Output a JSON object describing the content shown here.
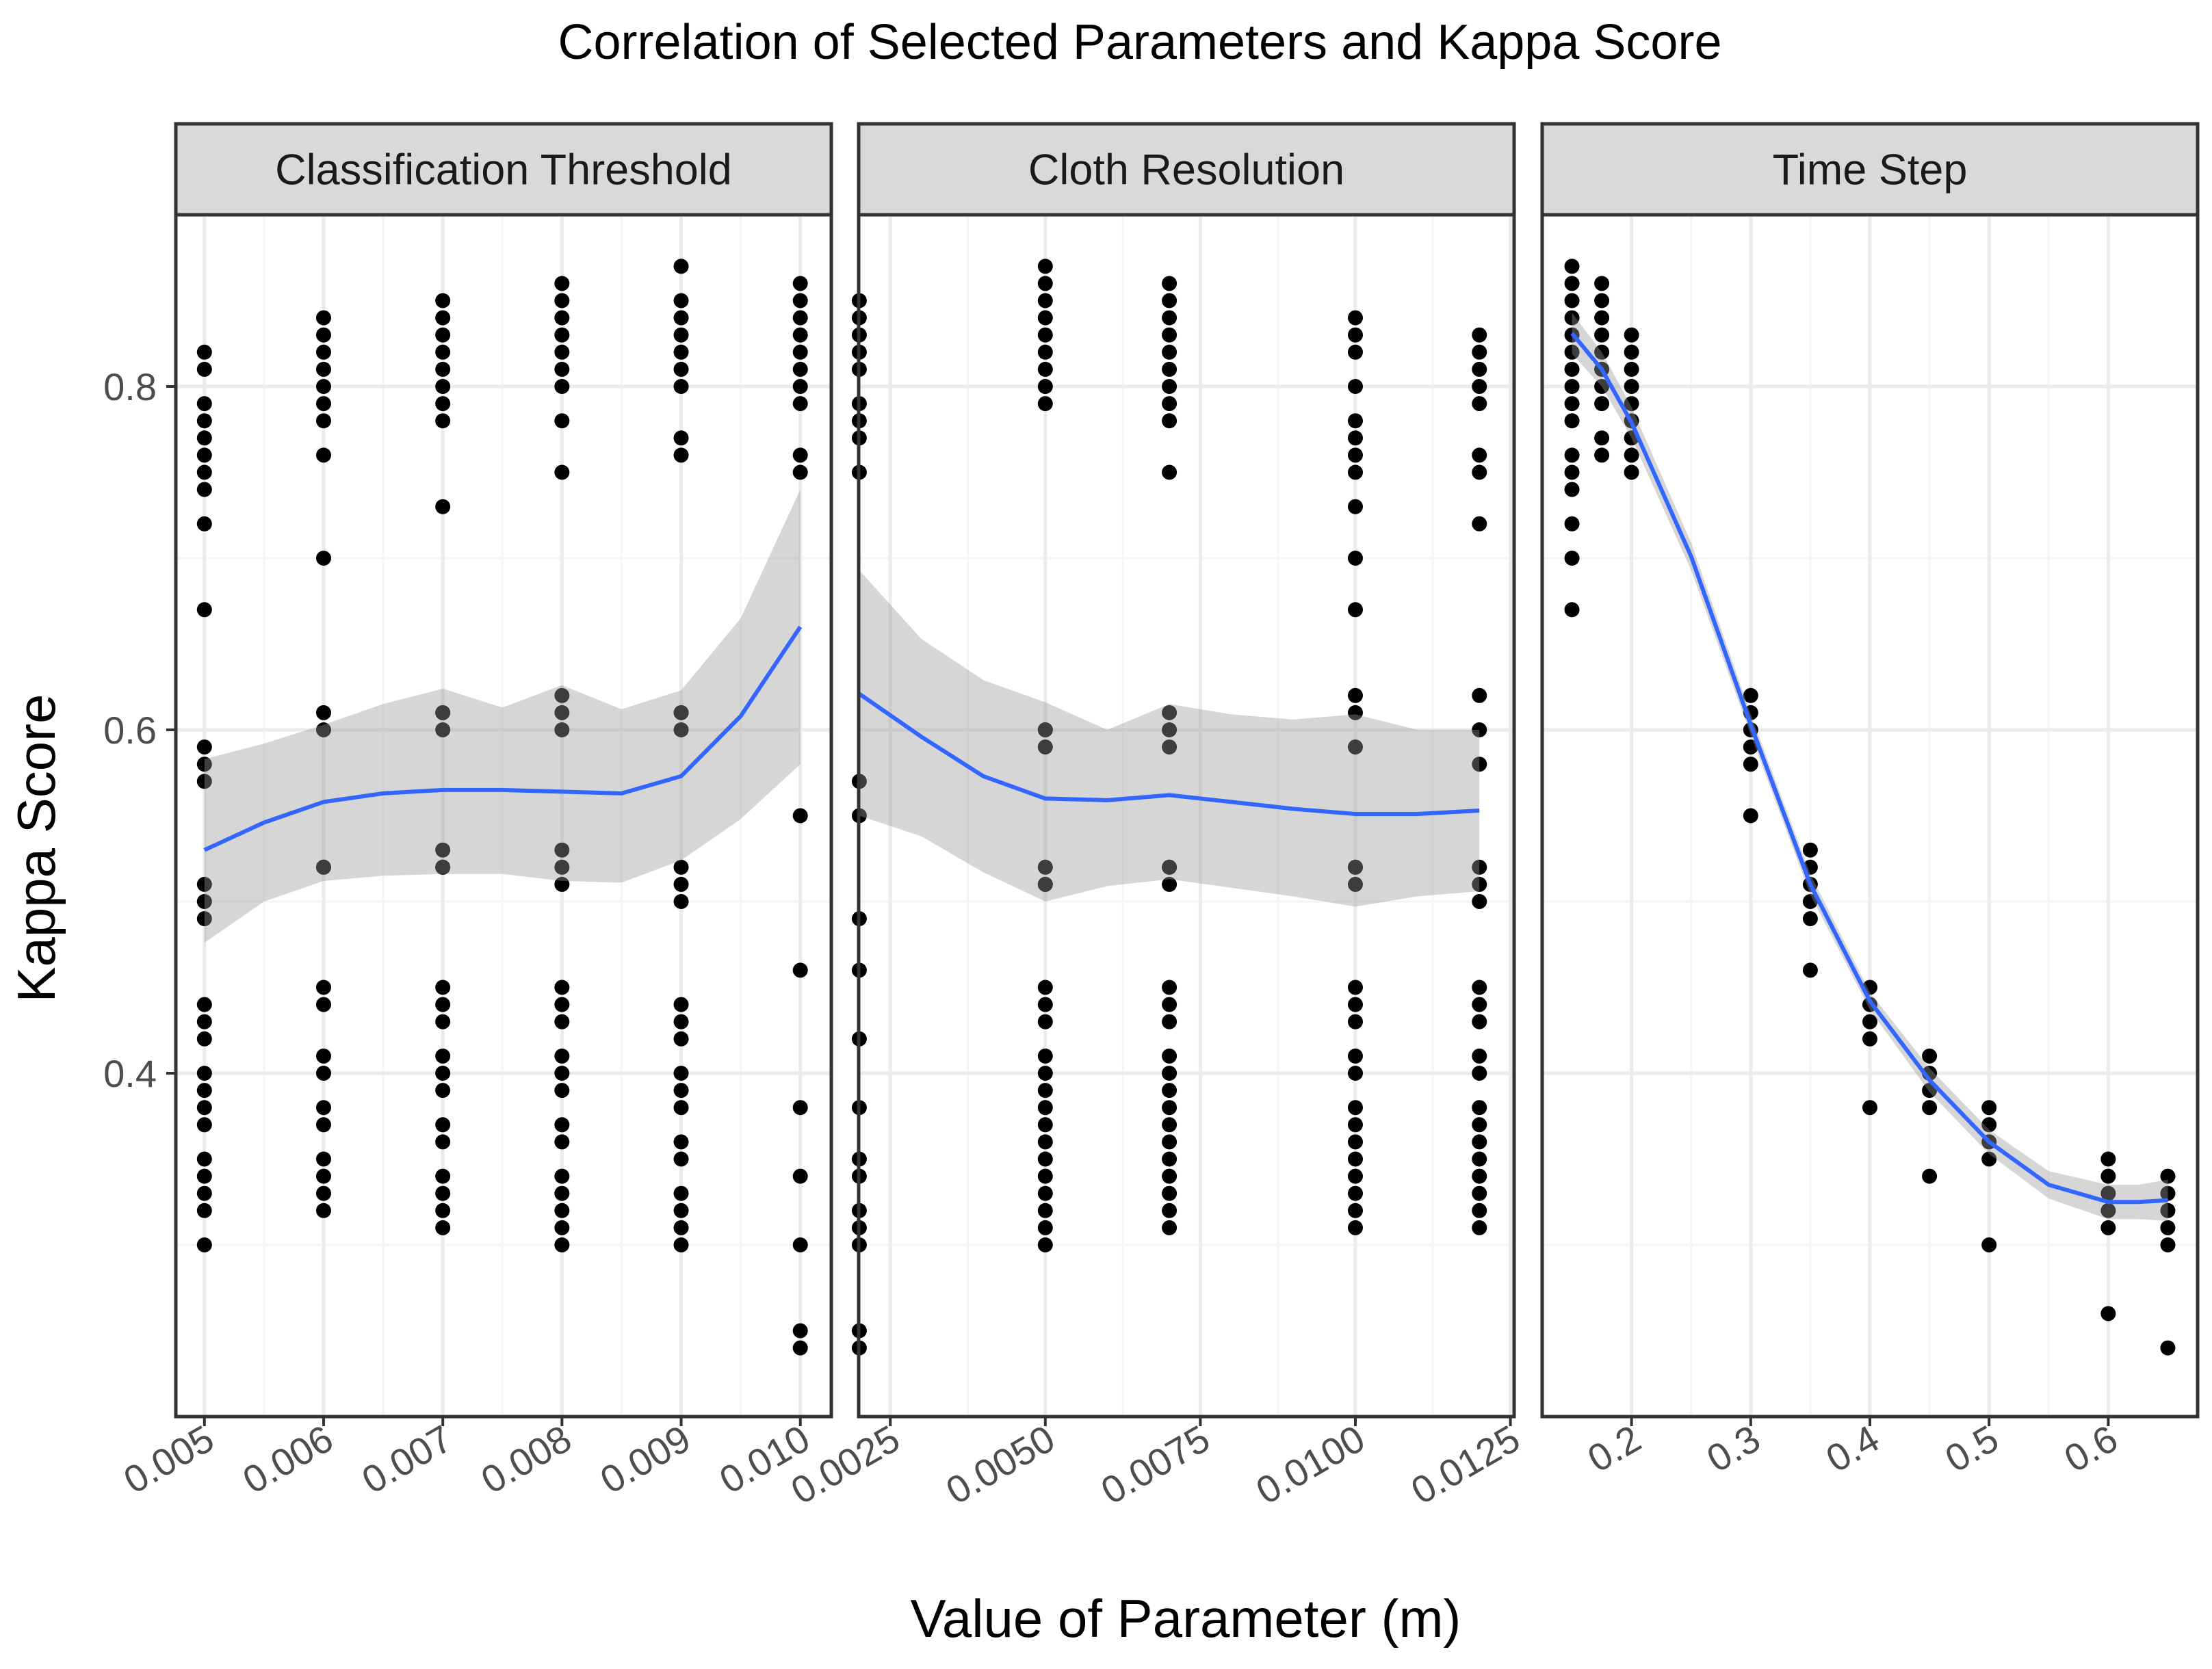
{
  "chart_data": {
    "type": "scatter",
    "title": "Correlation of Selected Parameters and Kappa Score",
    "xlabel": "Value of Parameter (m)",
    "ylabel": "Kappa Score",
    "ylim": [
      0.2,
      0.9
    ],
    "y_ticks": [
      0.4,
      0.6,
      0.8
    ],
    "y_tick_labels": [
      "0.4",
      "0.6",
      "0.8"
    ],
    "grid": true,
    "panels": [
      {
        "facet": "Classification Threshold",
        "xlim": [
          0.00476,
          0.01026
        ],
        "x_ticks": [
          0.005,
          0.006,
          0.007,
          0.008,
          0.009,
          0.01
        ],
        "x_tick_labels": [
          "0.005",
          "0.006",
          "0.007",
          "0.008",
          "0.009",
          "0.010"
        ],
        "groups": [
          {
            "x": 0.005,
            "y": [
              0.82,
              0.81,
              0.79,
              0.78,
              0.77,
              0.76,
              0.75,
              0.74,
              0.72,
              0.67,
              0.59,
              0.58,
              0.57,
              0.51,
              0.5,
              0.49,
              0.44,
              0.43,
              0.42,
              0.4,
              0.39,
              0.38,
              0.37,
              0.35,
              0.34,
              0.33,
              0.32,
              0.3
            ]
          },
          {
            "x": 0.006,
            "y": [
              0.84,
              0.83,
              0.82,
              0.81,
              0.8,
              0.79,
              0.78,
              0.76,
              0.7,
              0.61,
              0.6,
              0.52,
              0.52,
              0.45,
              0.44,
              0.41,
              0.4,
              0.38,
              0.37,
              0.35,
              0.34,
              0.33,
              0.32
            ]
          },
          {
            "x": 0.007,
            "y": [
              0.85,
              0.84,
              0.83,
              0.82,
              0.81,
              0.8,
              0.79,
              0.78,
              0.73,
              0.61,
              0.61,
              0.6,
              0.53,
              0.52,
              0.52,
              0.45,
              0.44,
              0.43,
              0.41,
              0.4,
              0.39,
              0.37,
              0.36,
              0.34,
              0.33,
              0.32,
              0.31
            ]
          },
          {
            "x": 0.008,
            "y": [
              0.86,
              0.85,
              0.84,
              0.83,
              0.82,
              0.81,
              0.8,
              0.78,
              0.75,
              0.62,
              0.61,
              0.6,
              0.53,
              0.52,
              0.51,
              0.45,
              0.44,
              0.43,
              0.41,
              0.4,
              0.39,
              0.37,
              0.36,
              0.34,
              0.33,
              0.32,
              0.31,
              0.3
            ]
          },
          {
            "x": 0.009,
            "y": [
              0.87,
              0.85,
              0.84,
              0.83,
              0.82,
              0.81,
              0.8,
              0.77,
              0.76,
              0.61,
              0.61,
              0.6,
              0.52,
              0.51,
              0.5,
              0.44,
              0.43,
              0.42,
              0.4,
              0.39,
              0.38,
              0.36,
              0.35,
              0.33,
              0.32,
              0.31,
              0.3
            ]
          },
          {
            "x": 0.01,
            "y": [
              0.86,
              0.85,
              0.84,
              0.83,
              0.82,
              0.81,
              0.8,
              0.79,
              0.76,
              0.75,
              0.55,
              0.46,
              0.38,
              0.34,
              0.3,
              0.25,
              0.24
            ]
          }
        ],
        "smooth_x": [
          0.005,
          0.0055,
          0.006,
          0.0065,
          0.007,
          0.0075,
          0.008,
          0.0085,
          0.009,
          0.0095,
          0.01
        ],
        "smooth_y": [
          0.53,
          0.546,
          0.558,
          0.563,
          0.565,
          0.565,
          0.564,
          0.563,
          0.573,
          0.608,
          0.66
        ],
        "band_lower": [
          0.476,
          0.5,
          0.512,
          0.515,
          0.516,
          0.516,
          0.512,
          0.511,
          0.524,
          0.548,
          0.58
        ],
        "band_upper": [
          0.583,
          0.592,
          0.603,
          0.615,
          0.624,
          0.613,
          0.626,
          0.612,
          0.623,
          0.665,
          0.74
        ]
      },
      {
        "facet": "Cloth Resolution",
        "xlim": [
          0.00199,
          0.01256
        ],
        "x_ticks": [
          0.0025,
          0.005,
          0.0075,
          0.01,
          0.0125
        ],
        "x_tick_labels": [
          "0.0025",
          "0.0050",
          "0.0075",
          "0.0100",
          "0.0125"
        ],
        "groups": [
          {
            "x": 0.002,
            "y": [
              0.85,
              0.84,
              0.83,
              0.82,
              0.81,
              0.79,
              0.78,
              0.77,
              0.75,
              0.57,
              0.55,
              0.49,
              0.46,
              0.42,
              0.38,
              0.35,
              0.34,
              0.32,
              0.31,
              0.3,
              0.25,
              0.24
            ]
          },
          {
            "x": 0.005,
            "y": [
              0.87,
              0.86,
              0.85,
              0.84,
              0.83,
              0.82,
              0.81,
              0.8,
              0.79,
              0.6,
              0.6,
              0.59,
              0.52,
              0.51,
              0.51,
              0.45,
              0.44,
              0.43,
              0.41,
              0.4,
              0.39,
              0.38,
              0.37,
              0.36,
              0.35,
              0.34,
              0.33,
              0.32,
              0.31,
              0.3
            ]
          },
          {
            "x": 0.007,
            "y": [
              0.86,
              0.85,
              0.84,
              0.83,
              0.82,
              0.81,
              0.8,
              0.79,
              0.78,
              0.75,
              0.61,
              0.6,
              0.59,
              0.52,
              0.52,
              0.51,
              0.45,
              0.44,
              0.43,
              0.41,
              0.4,
              0.39,
              0.38,
              0.37,
              0.36,
              0.35,
              0.34,
              0.33,
              0.32,
              0.31
            ]
          },
          {
            "x": 0.01,
            "y": [
              0.84,
              0.83,
              0.82,
              0.8,
              0.78,
              0.77,
              0.76,
              0.75,
              0.73,
              0.7,
              0.67,
              0.62,
              0.61,
              0.59,
              0.52,
              0.52,
              0.51,
              0.45,
              0.44,
              0.43,
              0.41,
              0.4,
              0.38,
              0.37,
              0.36,
              0.35,
              0.34,
              0.33,
              0.32,
              0.31
            ]
          },
          {
            "x": 0.012,
            "y": [
              0.83,
              0.82,
              0.81,
              0.8,
              0.79,
              0.76,
              0.75,
              0.72,
              0.62,
              0.6,
              0.58,
              0.52,
              0.51,
              0.5,
              0.45,
              0.44,
              0.43,
              0.41,
              0.4,
              0.38,
              0.37,
              0.36,
              0.35,
              0.34,
              0.33,
              0.32,
              0.31
            ]
          }
        ],
        "smooth_x": [
          0.002,
          0.003,
          0.004,
          0.005,
          0.006,
          0.007,
          0.008,
          0.009,
          0.01,
          0.011,
          0.012
        ],
        "smooth_y": [
          0.621,
          0.596,
          0.573,
          0.56,
          0.559,
          0.562,
          0.558,
          0.554,
          0.551,
          0.551,
          0.553
        ],
        "band_lower": [
          0.55,
          0.538,
          0.517,
          0.5,
          0.509,
          0.513,
          0.508,
          0.503,
          0.497,
          0.503,
          0.506
        ],
        "band_upper": [
          0.693,
          0.653,
          0.629,
          0.616,
          0.6,
          0.615,
          0.609,
          0.606,
          0.609,
          0.6,
          0.6
        ]
      },
      {
        "facet": "Time Step",
        "xlim": [
          0.125,
          0.675
        ],
        "x_ticks": [
          0.2,
          0.3,
          0.4,
          0.5,
          0.6
        ],
        "x_tick_labels": [
          "0.2",
          "0.3",
          "0.4",
          "0.5",
          "0.6"
        ],
        "groups": [
          {
            "x": 0.15,
            "y": [
              0.87,
              0.86,
              0.85,
              0.84,
              0.83,
              0.82,
              0.81,
              0.8,
              0.79,
              0.78,
              0.76,
              0.75,
              0.74,
              0.72,
              0.7,
              0.67
            ]
          },
          {
            "x": 0.175,
            "y": [
              0.86,
              0.85,
              0.84,
              0.83,
              0.82,
              0.81,
              0.8,
              0.79,
              0.77,
              0.76
            ]
          },
          {
            "x": 0.2,
            "y": [
              0.83,
              0.82,
              0.81,
              0.8,
              0.79,
              0.78,
              0.77,
              0.76,
              0.75
            ]
          },
          {
            "x": 0.3,
            "y": [
              0.62,
              0.61,
              0.6,
              0.59,
              0.58,
              0.55
            ]
          },
          {
            "x": 0.35,
            "y": [
              0.53,
              0.52,
              0.51,
              0.5,
              0.49,
              0.46
            ]
          },
          {
            "x": 0.4,
            "y": [
              0.45,
              0.44,
              0.43,
              0.42,
              0.38
            ]
          },
          {
            "x": 0.45,
            "y": [
              0.41,
              0.4,
              0.39,
              0.38,
              0.34
            ]
          },
          {
            "x": 0.5,
            "y": [
              0.38,
              0.37,
              0.36,
              0.35,
              0.3
            ]
          },
          {
            "x": 0.6,
            "y": [
              0.35,
              0.34,
              0.33,
              0.32,
              0.31,
              0.26
            ]
          },
          {
            "x": 0.65,
            "y": [
              0.34,
              0.33,
              0.32,
              0.31,
              0.3,
              0.24
            ]
          }
        ],
        "smooth_x": [
          0.15,
          0.175,
          0.2,
          0.25,
          0.3,
          0.35,
          0.4,
          0.45,
          0.5,
          0.55,
          0.6,
          0.625,
          0.65
        ],
        "smooth_y": [
          0.831,
          0.81,
          0.779,
          0.701,
          0.603,
          0.51,
          0.442,
          0.396,
          0.36,
          0.335,
          0.325,
          0.325,
          0.326
        ],
        "band_lower": [
          0.819,
          0.8,
          0.77,
          0.693,
          0.597,
          0.504,
          0.437,
          0.389,
          0.353,
          0.327,
          0.315,
          0.315,
          0.314
        ],
        "band_upper": [
          0.843,
          0.82,
          0.788,
          0.709,
          0.609,
          0.516,
          0.447,
          0.403,
          0.367,
          0.343,
          0.335,
          0.335,
          0.338
        ]
      }
    ]
  },
  "colors": {
    "point": "#000000",
    "smooth_line": "#3366ff",
    "confidence_band": "#999999",
    "strip_fill": "#d9d9d9",
    "grid_major": "#ebebeb",
    "grid_minor": "#f5f5f5"
  }
}
